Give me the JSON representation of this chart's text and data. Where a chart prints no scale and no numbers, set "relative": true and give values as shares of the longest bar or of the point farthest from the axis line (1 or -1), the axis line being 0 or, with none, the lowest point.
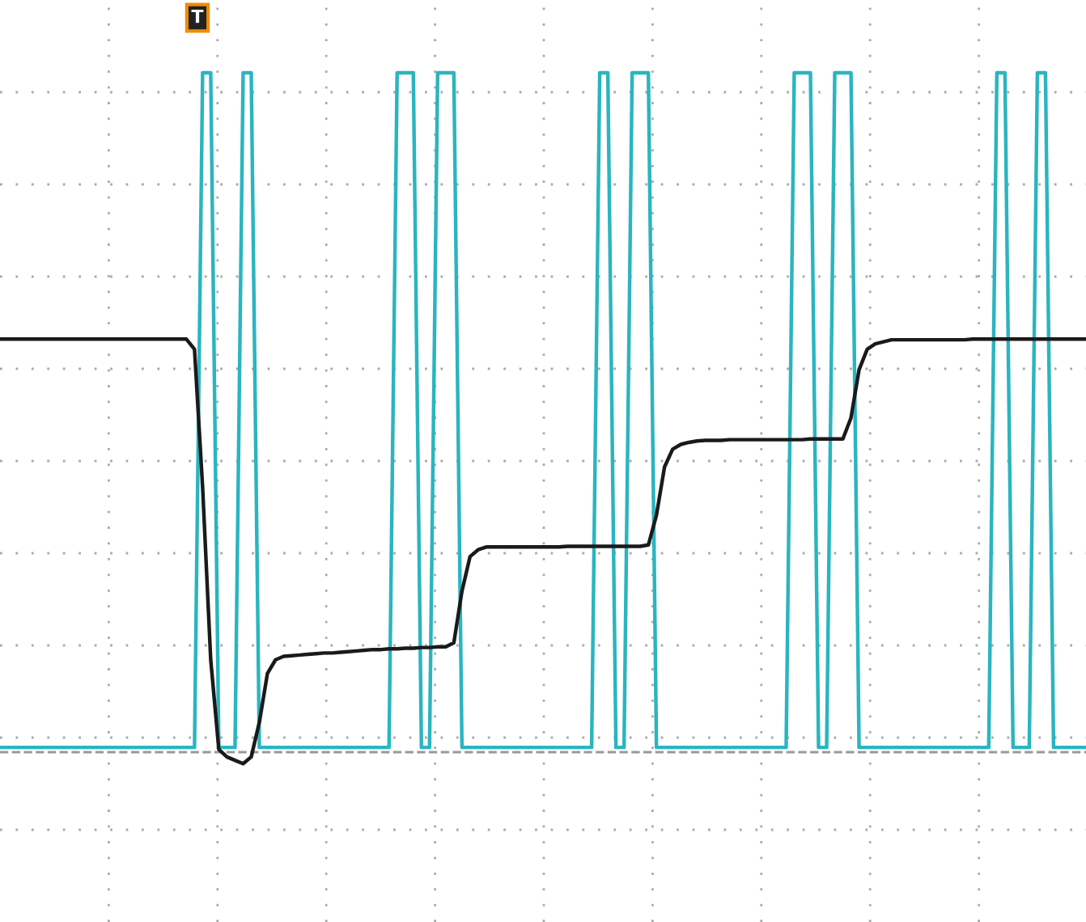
{
  "chart_data": {
    "type": "line",
    "relative": true,
    "grid": true,
    "legend": false,
    "marker": "none",
    "line_style": "solid",
    "categories": [
      null,
      null,
      null,
      null,
      null,
      null,
      null,
      null,
      null,
      null,
      null,
      null,
      null,
      null,
      null,
      null,
      null,
      null,
      null,
      null,
      null,
      null,
      null,
      null,
      null,
      null,
      null,
      null,
      null,
      null,
      null,
      null,
      null,
      null,
      null,
      null,
      null,
      null,
      null,
      null,
      null,
      null,
      null,
      null,
      null,
      null,
      null,
      null,
      null,
      null,
      null,
      null,
      null,
      null,
      null,
      null,
      null,
      null,
      null,
      null,
      null,
      null,
      null,
      null,
      null,
      null,
      null,
      null,
      null,
      null,
      null,
      null,
      null,
      null,
      null,
      null,
      null,
      null,
      null,
      null,
      null,
      null,
      null,
      null,
      null,
      null,
      null,
      null,
      null,
      null,
      null,
      null,
      null,
      null,
      null,
      null,
      null,
      null,
      null,
      null,
      null,
      null,
      null,
      null,
      null,
      null,
      null,
      null,
      null,
      null,
      null,
      null,
      null,
      null,
      null,
      null,
      null,
      null,
      null,
      null,
      null,
      null,
      null,
      null,
      null,
      null,
      null,
      null,
      null,
      null,
      null,
      null,
      null,
      null,
      null
    ],
    "series": [
      {
        "color": "#2ab5c0",
        "values": [
          0.007,
          0.007,
          0.007,
          0.007,
          0.007,
          0.007,
          0.007,
          0.007,
          0.007,
          0.007,
          0.007,
          0.007,
          0.007,
          0.007,
          0.007,
          0.007,
          0.007,
          0.007,
          0.007,
          0.007,
          0.007,
          0.007,
          0.007,
          0.007,
          0.007,
          1,
          1,
          0.007,
          0.007,
          0.007,
          1,
          1,
          0.007,
          0.007,
          0.007,
          0.007,
          0.007,
          0.007,
          0.007,
          0.007,
          0.007,
          0.007,
          0.007,
          0.007,
          0.007,
          0.007,
          0.007,
          0.007,
          0.007,
          1,
          1,
          1,
          0.007,
          0.007,
          1,
          1,
          1,
          0.007,
          0.007,
          0.007,
          0.007,
          0.007,
          0.007,
          0.007,
          0.007,
          0.007,
          0.007,
          0.007,
          0.007,
          0.007,
          0.007,
          0.007,
          0.007,
          0.007,
          1,
          1,
          0.007,
          0.007,
          1,
          1,
          1,
          0.007,
          0.007,
          0.007,
          0.007,
          0.007,
          0.007,
          0.007,
          0.007,
          0.007,
          0.007,
          0.007,
          0.007,
          0.007,
          0.007,
          0.007,
          0.007,
          0.007,
          1,
          1,
          1,
          0.007,
          0.007,
          1,
          1,
          1,
          0.007,
          0.007,
          0.007,
          0.007,
          0.007,
          0.007,
          0.007,
          0.007,
          0.007,
          0.007,
          0.007,
          0.007,
          0.007,
          0.007,
          0.007,
          0.007,
          0.007,
          1,
          1,
          0.007,
          0.007,
          0.007,
          1,
          1,
          0.007,
          0.007,
          0.007,
          0.007,
          0.007
        ]
      },
      {
        "color": "#1a1a1a",
        "values": [
          0.608,
          0.608,
          0.608,
          0.608,
          0.608,
          0.608,
          0.608,
          0.608,
          0.608,
          0.608,
          0.608,
          0.608,
          0.608,
          0.608,
          0.608,
          0.608,
          0.608,
          0.608,
          0.608,
          0.608,
          0.608,
          0.608,
          0.608,
          0.608,
          0.593,
          0.39,
          0.136,
          0.004,
          -0.007,
          -0.012,
          -0.017,
          -0.007,
          0.044,
          0.116,
          0.136,
          0.141,
          0.142,
          0.143,
          0.144,
          0.145,
          0.146,
          0.146,
          0.147,
          0.148,
          0.149,
          0.15,
          0.151,
          0.151,
          0.152,
          0.152,
          0.153,
          0.153,
          0.154,
          0.154,
          0.155,
          0.155,
          0.161,
          0.237,
          0.288,
          0.298,
          0.302,
          0.302,
          0.302,
          0.302,
          0.302,
          0.302,
          0.302,
          0.302,
          0.302,
          0.302,
          0.303,
          0.303,
          0.303,
          0.303,
          0.303,
          0.303,
          0.303,
          0.303,
          0.303,
          0.303,
          0.305,
          0.349,
          0.42,
          0.446,
          0.453,
          0.456,
          0.458,
          0.459,
          0.459,
          0.459,
          0.46,
          0.46,
          0.46,
          0.46,
          0.46,
          0.46,
          0.46,
          0.46,
          0.46,
          0.46,
          0.461,
          0.461,
          0.461,
          0.461,
          0.461,
          0.492,
          0.563,
          0.593,
          0.601,
          0.604,
          0.607,
          0.607,
          0.607,
          0.607,
          0.607,
          0.607,
          0.607,
          0.607,
          0.607,
          0.607,
          0.608,
          0.608,
          0.608,
          0.608,
          0.608,
          0.608,
          0.608,
          0.608,
          0.608,
          0.608,
          0.608,
          0.608,
          0.608,
          0.608,
          0.608
        ]
      }
    ],
    "ref_lines": [
      {
        "axis": "y",
        "value": 0,
        "color": "#999999",
        "line_style": "dashed"
      }
    ],
    "annotations": [
      "T"
    ]
  }
}
